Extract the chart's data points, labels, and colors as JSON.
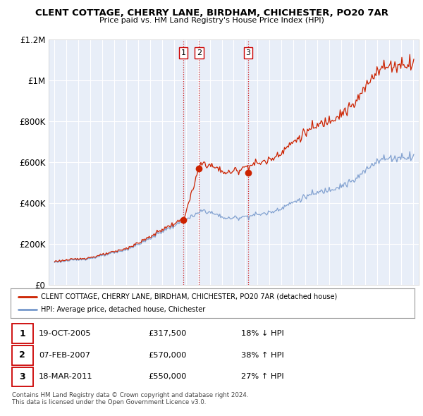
{
  "title": "CLENT COTTAGE, CHERRY LANE, BIRDHAM, CHICHESTER, PO20 7AR",
  "subtitle": "Price paid vs. HM Land Registry's House Price Index (HPI)",
  "legend_property": "CLENT COTTAGE, CHERRY LANE, BIRDHAM, CHICHESTER, PO20 7AR (detached house)",
  "legend_hpi": "HPI: Average price, detached house, Chichester",
  "footnote1": "Contains HM Land Registry data © Crown copyright and database right 2024.",
  "footnote2": "This data is licensed under the Open Government Licence v3.0.",
  "transactions": [
    {
      "num": 1,
      "date": "19-OCT-2005",
      "price": 317500,
      "hpi_rel": "18% ↓ HPI"
    },
    {
      "num": 2,
      "date": "07-FEB-2007",
      "price": 570000,
      "hpi_rel": "38% ↑ HPI"
    },
    {
      "num": 3,
      "date": "18-MAR-2011",
      "price": 550000,
      "hpi_rel": "27% ↑ HPI"
    }
  ],
  "transaction_years": [
    2005.79,
    2007.1,
    2011.21
  ],
  "transaction_prices": [
    317500,
    570000,
    550000
  ],
  "vline_color": "#cc0000",
  "property_line_color": "#cc2200",
  "hpi_line_color": "#7799cc",
  "ylim": [
    0,
    1200000
  ],
  "yticks": [
    0,
    200000,
    400000,
    600000,
    800000,
    1000000,
    1200000
  ],
  "ytick_labels": [
    "£0",
    "£200K",
    "£400K",
    "£600K",
    "£800K",
    "£1M",
    "£1.2M"
  ],
  "xlim_start": 1994.5,
  "xlim_end": 2025.5,
  "plot_bg_color": "#e8eef8",
  "background_color": "#ffffff",
  "grid_color": "#ffffff"
}
